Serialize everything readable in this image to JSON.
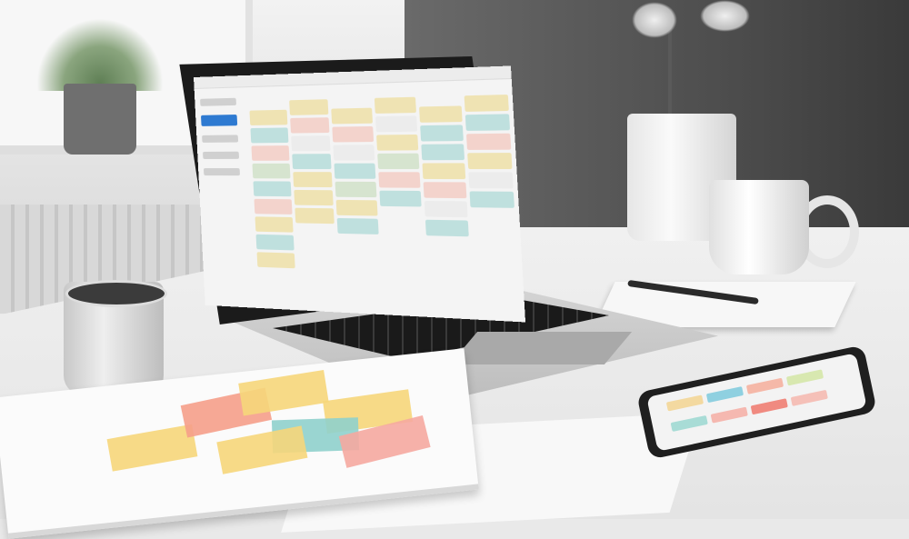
{
  "scene": {
    "wall_colors": [
      "#f0f0f0",
      "#4a4a4a"
    ],
    "desk_color": "#ececec"
  },
  "laptop_screen": {
    "app": "kanban-board",
    "sidebar_items": 5,
    "active_sidebar_index": 1,
    "accent": "#2e7ad1",
    "columns": [
      [
        "#efe3b3",
        "#bfe0de",
        "#f3d3cc",
        "#d6e4cf",
        "#bfe0de",
        "#f3d3cc",
        "#efe3b3",
        "#bfe0de",
        "#efe3b3"
      ],
      [
        "#efe3b3",
        "#f3d3cc",
        "#ececec",
        "#bfe0de",
        "#efe3b3",
        "#efe3b3",
        "#efe3b3"
      ],
      [
        "#efe3b3",
        "#f3d3cc",
        "#ececec",
        "#bfe0de",
        "#d6e4cf",
        "#efe3b3",
        "#bfe0de"
      ],
      [
        "#efe3b3",
        "#ececec",
        "#efe3b3",
        "#d6e4cf",
        "#f3d3cc",
        "#bfe0de"
      ],
      [
        "#efe3b3",
        "#bfe0de",
        "#bfe0de",
        "#efe3b3",
        "#f3d3cc",
        "#ececec",
        "#bfe0de"
      ],
      [
        "#efe3b3",
        "#bfe0de",
        "#f3d3cc",
        "#efe3b3",
        "#ececec",
        "#bfe0de"
      ]
    ]
  },
  "sticky_notes": [
    "#f6d67a",
    "#f59e8a",
    "#f6d67a",
    "#f6d67a",
    "#8fd0cc",
    "#f6d67a",
    "#f5a9a0"
  ],
  "phone_chips": [
    "#f3d9a0",
    "#8fd0e0",
    "#f5b8a8",
    "#d8e8b0",
    "#a8dcd6",
    "#f5b8b0",
    "#f08a80",
    "#f5c0b8"
  ]
}
